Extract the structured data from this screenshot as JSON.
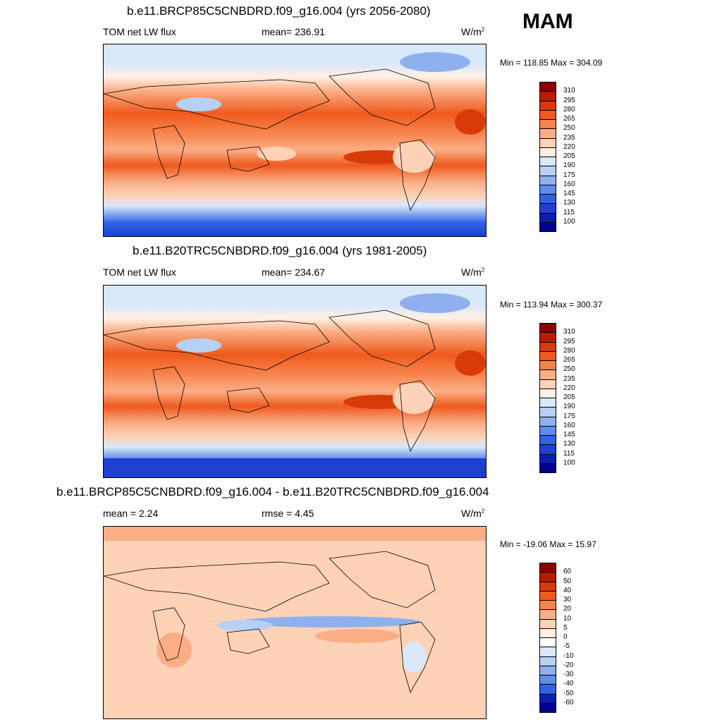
{
  "season": "MAM",
  "panels": [
    {
      "title": "b.e11.BRCP85C5CNBDRD.f09_g16.004 (yrs 2056-2080)",
      "left_label": "TOM net LW flux",
      "center_label": "mean= 236.91",
      "units_main": "W/m",
      "units_exp": "2",
      "minmax": "Min = 118.85 Max = 304.09"
    },
    {
      "title": "b.e11.B20TRC5CNBDRD.f09_g16.004 (yrs 1981-2005)",
      "left_label": "TOM net LW flux",
      "center_label": "mean= 234.67",
      "units_main": "W/m",
      "units_exp": "2",
      "minmax": "Min = 113.94 Max = 300.37"
    },
    {
      "title": "b.e11.BRCP85C5CNBDRD.f09_g16.004 - b.e11.B20TRC5CNBDRD.f09_g16.004",
      "left_label": "mean =   2.24",
      "center_label": "rmse =   4.45",
      "units_main": "W/m",
      "units_exp": "2",
      "minmax": "Min = -19.06 Max =  15.97"
    }
  ],
  "chart_data": [
    {
      "type": "heatmap",
      "title": "b.e11.BRCP85C5CNBDRD.f09_g16.004 (yrs 2056-2080)",
      "variable": "TOM net LW flux",
      "units": "W/m2",
      "mean": 236.91,
      "min": 118.85,
      "max": 304.09,
      "colorbar_levels": [
        310,
        295,
        280,
        265,
        250,
        235,
        220,
        205,
        190,
        175,
        160,
        145,
        130,
        115,
        100
      ],
      "colorbar_colors": [
        "#8b0000",
        "#b81b00",
        "#d83a0a",
        "#ef5a1e",
        "#f7834c",
        "#fbae86",
        "#fdd2b6",
        "#fff0e3",
        "#d9e8fa",
        "#b7d0f5",
        "#8fb0ee",
        "#5f8cee",
        "#2f62e8",
        "#1e3fd2",
        "#0a1eb0",
        "#000090"
      ]
    },
    {
      "type": "heatmap",
      "title": "b.e11.B20TRC5CNBDRD.f09_g16.004 (yrs 1981-2005)",
      "variable": "TOM net LW flux",
      "units": "W/m2",
      "mean": 234.67,
      "min": 113.94,
      "max": 300.37,
      "colorbar_levels": [
        310,
        295,
        280,
        265,
        250,
        235,
        220,
        205,
        190,
        175,
        160,
        145,
        130,
        115,
        100
      ],
      "colorbar_colors": [
        "#8b0000",
        "#b81b00",
        "#d83a0a",
        "#ef5a1e",
        "#f7834c",
        "#fbae86",
        "#fdd2b6",
        "#fff0e3",
        "#d9e8fa",
        "#b7d0f5",
        "#8fb0ee",
        "#5f8cee",
        "#2f62e8",
        "#1e3fd2",
        "#0a1eb0",
        "#000090"
      ]
    },
    {
      "type": "heatmap",
      "title": "b.e11.BRCP85C5CNBDRD.f09_g16.004 - b.e11.B20TRC5CNBDRD.f09_g16.004",
      "variable": "difference",
      "units": "W/m2",
      "mean": 2.24,
      "rmse": 4.45,
      "min": -19.06,
      "max": 15.97,
      "colorbar_levels": [
        60,
        50,
        40,
        30,
        20,
        10,
        5,
        0,
        -5,
        -10,
        -20,
        -30,
        -40,
        -50,
        -60
      ],
      "colorbar_colors": [
        "#8b0000",
        "#b81b00",
        "#d83a0a",
        "#ef5a1e",
        "#f7834c",
        "#fbae86",
        "#fdd2b6",
        "#fff0e3",
        "#ffffff",
        "#d9e8fa",
        "#b7d0f5",
        "#8fb0ee",
        "#5f8cee",
        "#2f62e8",
        "#0a1eb0",
        "#000090"
      ]
    }
  ]
}
